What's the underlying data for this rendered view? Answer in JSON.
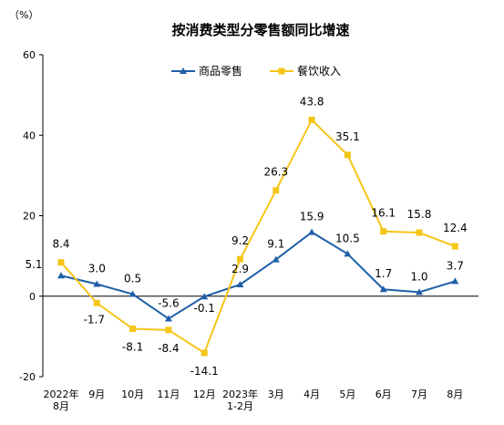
{
  "chart_data": {
    "type": "line",
    "title": "按消费类型分零售额同比增速",
    "unit_label": "（%）",
    "categories": [
      [
        "2022年",
        "8月"
      ],
      [
        "9月"
      ],
      [
        "10月"
      ],
      [
        "11月"
      ],
      [
        "12月"
      ],
      [
        "2023年",
        "1-2月"
      ],
      [
        "3月"
      ],
      [
        "4月"
      ],
      [
        "5月"
      ],
      [
        "6月"
      ],
      [
        "7月"
      ],
      [
        "8月"
      ]
    ],
    "ylim": [
      -20,
      60
    ],
    "yticks": [
      -20,
      0,
      20,
      40,
      60
    ],
    "grid": false,
    "legend_position": "top-center",
    "series": [
      {
        "name": "商品零售",
        "color": "#1f5fa8",
        "marker": "triangle",
        "values": [
          5.1,
          3.0,
          0.5,
          -5.6,
          -0.1,
          2.9,
          9.1,
          15.9,
          10.5,
          1.7,
          1.0,
          3.7
        ],
        "labels": [
          "5.1",
          "3.0",
          "0.5",
          "-5.6",
          "-0.1",
          "2.9",
          "9.1",
          "15.9",
          "10.5",
          "1.7",
          "1.0",
          "3.7"
        ]
      },
      {
        "name": "餐饮收入",
        "color": "#f5c518",
        "marker": "square",
        "values": [
          8.4,
          -1.7,
          -8.1,
          -8.4,
          -14.1,
          9.2,
          26.3,
          43.8,
          35.1,
          16.1,
          15.8,
          12.4
        ],
        "labels": [
          "8.4",
          "-1.7",
          "-8.1",
          "-8.4",
          "-14.1",
          "9.2",
          "26.3",
          "43.8",
          "35.1",
          "16.1",
          "15.8",
          "12.4"
        ]
      }
    ]
  }
}
